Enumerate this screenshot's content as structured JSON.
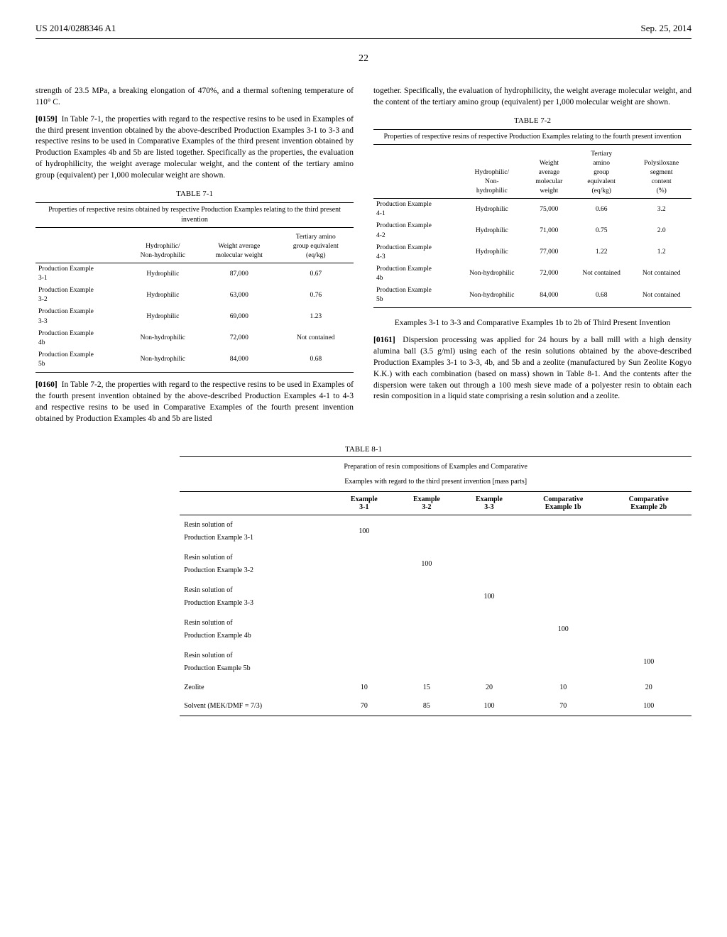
{
  "header": {
    "pubnum": "US 2014/0288346 A1",
    "date": "Sep. 25, 2014"
  },
  "page_number": "22",
  "left": {
    "p0158_tail": "strength of 23.5 MPa, a breaking elongation of 470%, and a thermal softening temperature of 110° C.",
    "p0159": "In Table 7-1, the properties with regard to the respective resins to be used in Examples of the third present invention obtained by the above-described Production Examples 3-1 to 3-3 and respective resins to be used in Comparative Examples of the third present invention obtained by Production Examples 4b and 5b are listed together. Specifically as the properties, the evaluation of hydrophilicity, the weight average molecular weight, and the content of the tertiary amino group (equivalent) per 1,000 molecular weight are shown.",
    "p0159_num": "[0159]",
    "table71": {
      "caption": "TABLE 7-1",
      "sub": "Properties of respective resins obtained by respective Production Examples relating to the third present invention",
      "cols": [
        "",
        "Hydrophilic/\nNon-hydrophilic",
        "Weight average\nmolecular weight",
        "Tertiary amino\ngroup equivalent\n(eq/kg)"
      ],
      "rows": [
        [
          "Production Example 3-1",
          "Hydrophilic",
          "87,000",
          "0.67"
        ],
        [
          "Production Example 3-2",
          "Hydrophilic",
          "63,000",
          "0.76"
        ],
        [
          "Production Example 3-3",
          "Hydrophilic",
          "69,000",
          "1.23"
        ],
        [
          "Production Example 4b",
          "Non-hydrophilic",
          "72,000",
          "Not contained"
        ],
        [
          "Production Example 5b",
          "Non-hydrophilic",
          "84,000",
          "0.68"
        ]
      ]
    },
    "p0160_num": "[0160]",
    "p0160": "In Table 7-2, the properties with regard to the respective resins to be used in Examples of the fourth present invention obtained by the above-described Production Examples 4-1 to 4-3 and respective resins to be used in Comparative Examples of the fourth present invention obtained by Production Examples 4b and 5b are listed"
  },
  "right": {
    "p0160_cont": "together. Specifically, the evaluation of hydrophilicity, the weight average molecular weight, and the content of the tertiary amino group (equivalent) per 1,000 molecular weight are shown.",
    "table72": {
      "caption": "TABLE 7-2",
      "sub": "Properties of respective resins of respective Production Examples relating to the fourth present invention",
      "cols": [
        "",
        "Hydrophilic/\nNon-\nhydrophilic",
        "Weight\naverage\nmolecular\nweight",
        "Tertiary\namino\ngroup\nequivalent\n(eq/kg)",
        "Polysiloxane\nsegment\ncontent\n(%)"
      ],
      "rows": [
        [
          "Production Example 4-1",
          "Hydrophilic",
          "75,000",
          "0.66",
          "3.2"
        ],
        [
          "Production Example 4-2",
          "Hydrophilic",
          "71,000",
          "0.75",
          "2.0"
        ],
        [
          "Production Example 4-3",
          "Hydrophilic",
          "77,000",
          "1.22",
          "1.2"
        ],
        [
          "Production Example 4b",
          "Non-hydrophilic",
          "72,000",
          "Not contained",
          "Not contained"
        ],
        [
          "Production Example 5b",
          "Non-hydrophilic",
          "84,000",
          "0.68",
          "Not contained"
        ]
      ]
    },
    "section": "Examples 3-1 to 3-3 and Comparative Examples 1b to 2b of Third Present Invention",
    "p0161_num": "[0161]",
    "p0161": "Dispersion processing was applied for 24 hours by a ball mill with a high density alumina ball (3.5 g/ml) using each of the resin solutions obtained by the above-described Production Examples 3-1 to 3-3, 4b, and 5b and a zeolite (manufactured by Sun Zeolite Kogyo K.K.) with each combination (based on mass) shown in Table 8-1. And the contents after the dispersion were taken out through a 100 mesh sieve made of a polyester resin to obtain each resin composition in a liquid state comprising a resin solution and a zeolite."
  },
  "table81": {
    "caption": "TABLE 8-1",
    "sub1": "Preparation of resin compositions of Examples and Comparative",
    "sub2": "Examples with regard to the third present invention [mass parts]",
    "cols": [
      "",
      "Example\n3-1",
      "Example\n3-2",
      "Example\n3-3",
      "Comparative\nExample 1b",
      "Comparative\nExample 2b"
    ],
    "rows": [
      [
        "Resin solution of Production Example 3-1",
        "100",
        "",
        "",
        "",
        ""
      ],
      [
        "Resin solution of Production Example 3-2",
        "",
        "100",
        "",
        "",
        ""
      ],
      [
        "Resin solution of Production Example 3-3",
        "",
        "",
        "100",
        "",
        ""
      ],
      [
        "Resin solution of Production Example 4b",
        "",
        "",
        "",
        "100",
        ""
      ],
      [
        "Resin solution of Production Esample 5b",
        "",
        "",
        "",
        "",
        "100"
      ],
      [
        "Zeolite",
        "10",
        "15",
        "20",
        "10",
        "20"
      ],
      [
        "Solvent (MEK/DMF = 7/3)",
        "70",
        "85",
        "100",
        "70",
        "100"
      ]
    ]
  }
}
